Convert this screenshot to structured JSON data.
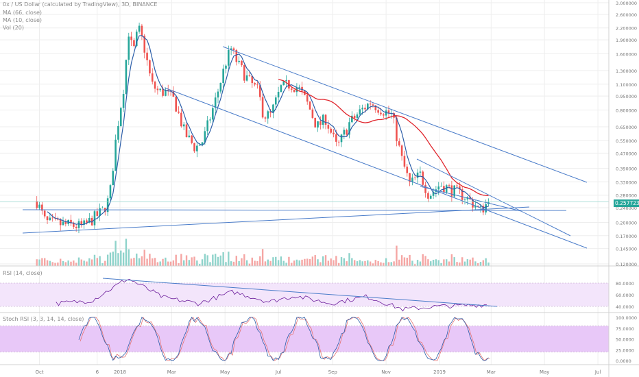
{
  "legend": {
    "title": "0x / US Dollar (calculated by TradingView), 3D, BINANCE",
    "ma1": "MA (66, close)",
    "ma2": "MA (10, close)",
    "vol": "Vol (20)",
    "rsi": "RSI (14, close)",
    "stoch": "Stoch RSI (3, 3, 14, 14, close)"
  },
  "last_price_label": "0.257723",
  "colors": {
    "up": "#26a69a",
    "down": "#ef5350",
    "ma10": "#2b5da8",
    "ma66": "#e0262d",
    "trend": "#4a7cc9",
    "rsi_band": "#f3e5fb",
    "stoch_band": "#e8c8f8",
    "rsi_line": "#6a1b9a",
    "stoch_k": "#2b5da8",
    "stoch_d": "#e57373",
    "grid": "#eeeeee"
  },
  "chart_data": [
    {
      "type": "candlestick",
      "title": "0x / US Dollar (calculated by TradingView), 3D, BINANCE",
      "xlabel": "",
      "ylabel": "",
      "scale": "log",
      "ylim": [
        0.12,
        3.0
      ],
      "x_ticks": [
        "Oct",
        "6",
        "2018",
        "Mar",
        "May",
        "Jul",
        "Sep",
        "Nov",
        "2019",
        "Mar",
        "May",
        "Jul"
      ],
      "y_ticks": [
        "3.000000",
        "2.600000",
        "2.200000",
        "1.900000",
        "1.600000",
        "1.300000",
        "1.100000",
        "0.950000",
        "0.800000",
        "0.650000",
        "0.550000",
        "0.470000",
        "0.390000",
        "0.330000",
        "0.280000",
        "0.240000",
        "0.200000",
        "0.170000",
        "0.145000",
        "0.120000"
      ],
      "last_price": 0.257723,
      "anchors": [
        {
          "date": "2017-09-28",
          "close": 0.26
        },
        {
          "date": "2017-10-08",
          "close": 0.2
        },
        {
          "date": "2017-10-28",
          "close": 0.195
        },
        {
          "date": "2017-11-20",
          "close": 0.19
        },
        {
          "date": "2017-12-12",
          "close": 0.23
        },
        {
          "date": "2017-12-20",
          "close": 0.27
        },
        {
          "date": "2017-12-28",
          "close": 0.6
        },
        {
          "date": "2018-01-05",
          "close": 1.05
        },
        {
          "date": "2018-01-11",
          "close": 2.1
        },
        {
          "date": "2018-01-16",
          "close": 1.6
        },
        {
          "date": "2018-01-22",
          "close": 2.2
        },
        {
          "date": "2018-01-28",
          "close": 1.8
        },
        {
          "date": "2018-02-06",
          "close": 1.1
        },
        {
          "date": "2018-02-14",
          "close": 1.0
        },
        {
          "date": "2018-02-22",
          "close": 1.0
        },
        {
          "date": "2018-03-04",
          "close": 0.9
        },
        {
          "date": "2018-03-16",
          "close": 0.6
        },
        {
          "date": "2018-03-28",
          "close": 0.5
        },
        {
          "date": "2018-04-06",
          "close": 0.55
        },
        {
          "date": "2018-04-20",
          "close": 0.9
        },
        {
          "date": "2018-05-02",
          "close": 1.45
        },
        {
          "date": "2018-05-08",
          "close": 1.7
        },
        {
          "date": "2018-05-16",
          "close": 1.4
        },
        {
          "date": "2018-05-28",
          "close": 1.15
        },
        {
          "date": "2018-06-08",
          "close": 1.0
        },
        {
          "date": "2018-06-14",
          "close": 0.75
        },
        {
          "date": "2018-06-22",
          "close": 0.75
        },
        {
          "date": "2018-07-04",
          "close": 1.05
        },
        {
          "date": "2018-07-14",
          "close": 1.1
        },
        {
          "date": "2018-07-24",
          "close": 1.05
        },
        {
          "date": "2018-08-04",
          "close": 0.85
        },
        {
          "date": "2018-08-14",
          "close": 0.65
        },
        {
          "date": "2018-08-24",
          "close": 0.72
        },
        {
          "date": "2018-09-06",
          "close": 0.5
        },
        {
          "date": "2018-09-20",
          "close": 0.68
        },
        {
          "date": "2018-10-04",
          "close": 0.8
        },
        {
          "date": "2018-10-14",
          "close": 0.88
        },
        {
          "date": "2018-10-28",
          "close": 0.8
        },
        {
          "date": "2018-11-08",
          "close": 0.75
        },
        {
          "date": "2018-11-18",
          "close": 0.45
        },
        {
          "date": "2018-11-28",
          "close": 0.32
        },
        {
          "date": "2018-12-10",
          "close": 0.36
        },
        {
          "date": "2018-12-20",
          "close": 0.28
        },
        {
          "date": "2019-01-02",
          "close": 0.32
        },
        {
          "date": "2019-01-14",
          "close": 0.3
        },
        {
          "date": "2019-01-28",
          "close": 0.28
        },
        {
          "date": "2019-02-10",
          "close": 0.25
        },
        {
          "date": "2019-02-16",
          "close": 0.23
        },
        {
          "date": "2019-02-26",
          "close": 0.257723
        }
      ],
      "ma66_from": "2018-07-01"
    },
    {
      "type": "line",
      "title": "RSI (14, close)",
      "band": [
        40,
        80
      ],
      "y_ticks": [
        "80.0000",
        "60.0000",
        "40.0000"
      ],
      "anchors": [
        {
          "date": "2017-10-20",
          "value": 45
        },
        {
          "date": "2017-11-30",
          "value": 50
        },
        {
          "date": "2018-01-10",
          "value": 88
        },
        {
          "date": "2018-02-20",
          "value": 55
        },
        {
          "date": "2018-04-01",
          "value": 45
        },
        {
          "date": "2018-05-10",
          "value": 65
        },
        {
          "date": "2018-06-20",
          "value": 48
        },
        {
          "date": "2018-07-20",
          "value": 58
        },
        {
          "date": "2018-08-30",
          "value": 45
        },
        {
          "date": "2018-10-10",
          "value": 57
        },
        {
          "date": "2018-11-20",
          "value": 35
        },
        {
          "date": "2018-12-30",
          "value": 40
        },
        {
          "date": "2019-02-26",
          "value": 43
        }
      ]
    },
    {
      "type": "line",
      "title": "Stoch RSI (3, 3, 14, 14, close)",
      "band": [
        20,
        80
      ],
      "y_ticks": [
        "100.0000",
        "75.0000",
        "50.0000",
        "25.0000",
        "0.0000"
      ]
    }
  ]
}
